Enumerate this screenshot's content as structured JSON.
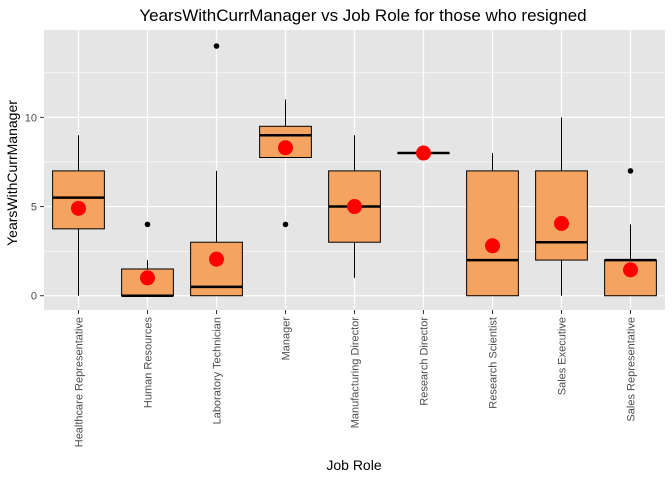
{
  "chart_data": {
    "type": "box",
    "title": "YearsWithCurrManager vs Job Role for those who resigned",
    "xlabel": "Job Role",
    "ylabel": "YearsWithCurrManager",
    "ylim": [
      -0.8,
      14.9
    ],
    "y_ticks": [
      0,
      5,
      10
    ],
    "grid": true,
    "colors": {
      "panel": "#e5e5e5",
      "grid": "#ffffff",
      "box_fill": "#f4a460",
      "box_stroke": "#000000",
      "median": "#000000",
      "outlier": "#000000",
      "mean": "#ff0000"
    },
    "categories": [
      "Healthcare Representative",
      "Human Resources",
      "Laboratory Technician",
      "Manager",
      "Manufacturing Director",
      "Research Director",
      "Research Scientist",
      "Sales Executive",
      "Sales Representative"
    ],
    "boxes": [
      {
        "min": 0,
        "q1": 3.75,
        "median": 5.5,
        "q3": 7,
        "max": 9,
        "mean": 4.9,
        "outliers": []
      },
      {
        "min": 0,
        "q1": 0,
        "median": 0,
        "q3": 1.5,
        "max": 2,
        "mean": 1,
        "outliers": [
          4
        ]
      },
      {
        "min": 0,
        "q1": 0,
        "median": 0.5,
        "q3": 3,
        "max": 7,
        "mean": 2.05,
        "outliers": [
          14
        ]
      },
      {
        "min": 7.75,
        "q1": 7.75,
        "median": 9,
        "q3": 9.5,
        "max": 11,
        "mean": 8.3,
        "outliers": [
          4
        ]
      },
      {
        "min": 1,
        "q1": 3,
        "median": 5,
        "q3": 7,
        "max": 9,
        "mean": 5,
        "outliers": []
      },
      {
        "min": 8,
        "q1": 8,
        "median": 8,
        "q3": 8,
        "max": 8,
        "mean": 8,
        "outliers": []
      },
      {
        "min": 0,
        "q1": 0,
        "median": 2,
        "q3": 7,
        "max": 8,
        "mean": 2.8,
        "outliers": []
      },
      {
        "min": 0,
        "q1": 2,
        "median": 3,
        "q3": 7,
        "max": 10,
        "mean": 4.05,
        "outliers": []
      },
      {
        "min": 0,
        "q1": 0,
        "median": 2,
        "q3": 2,
        "max": 4,
        "mean": 1.45,
        "outliers": [
          7
        ]
      }
    ]
  }
}
